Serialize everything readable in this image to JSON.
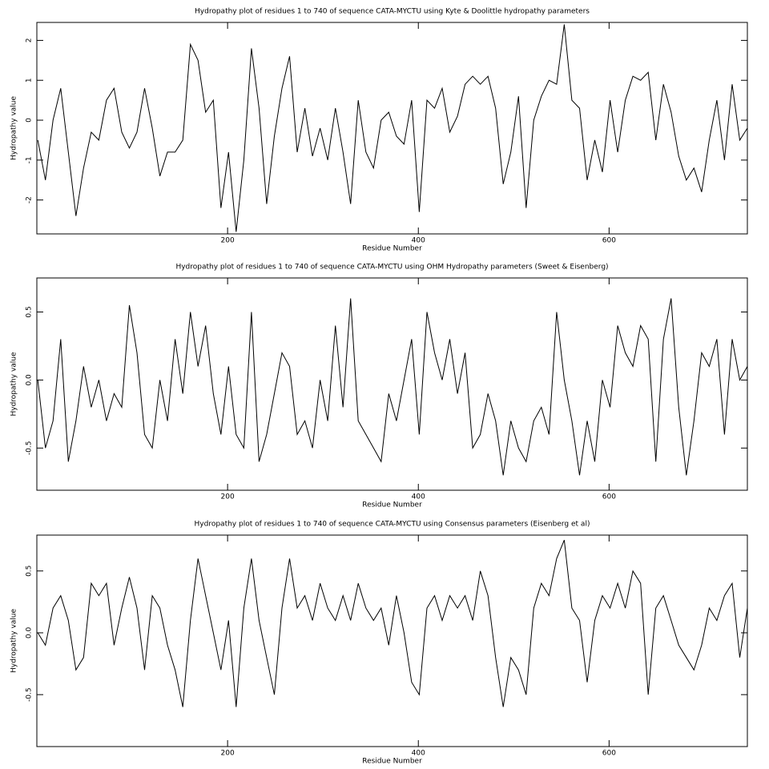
{
  "chart_data": [
    {
      "type": "line",
      "title": "Hydropathy plot of residues 1 to 740 of sequence CATA-MYCTU using Kyte & Doolittle hydropathy parameters",
      "xlabel": "Residue Number",
      "ylabel": "Hydropathy value",
      "color": "#000000",
      "xlim": [
        0,
        745
      ],
      "xticks": [
        200,
        400,
        600
      ],
      "ylim": [
        -2.85,
        2.45
      ],
      "yticks": [
        -2,
        -1,
        0,
        1,
        2
      ],
      "x": [
        1,
        9,
        17,
        25,
        33,
        41,
        49,
        57,
        65,
        73,
        81,
        89,
        97,
        105,
        113,
        121,
        129,
        137,
        145,
        153,
        161,
        169,
        177,
        185,
        193,
        201,
        209,
        217,
        225,
        233,
        241,
        249,
        257,
        265,
        273,
        281,
        289,
        297,
        305,
        313,
        321,
        329,
        337,
        345,
        353,
        361,
        369,
        377,
        385,
        393,
        401,
        409,
        417,
        425,
        433,
        441,
        449,
        457,
        465,
        473,
        481,
        489,
        497,
        505,
        513,
        521,
        529,
        537,
        545,
        553,
        561,
        569,
        577,
        585,
        593,
        601,
        609,
        617,
        625,
        633,
        641,
        649,
        657,
        665,
        673,
        681,
        689,
        697,
        705,
        713,
        721,
        729,
        737,
        745
      ],
      "values": [
        -0.5,
        -1.5,
        0,
        0.8,
        -0.8,
        -2.4,
        -1.2,
        -0.3,
        -0.5,
        0.5,
        0.8,
        -0.3,
        -0.7,
        -0.3,
        0.8,
        -0.2,
        -1.4,
        -0.8,
        -0.8,
        -0.5,
        1.9,
        1.5,
        0.2,
        0.5,
        -2.2,
        -0.8,
        -2.8,
        -1.0,
        1.8,
        0.3,
        -2.1,
        -0.4,
        0.8,
        1.6,
        -0.8,
        0.3,
        -0.9,
        -0.2,
        -1.0,
        0.3,
        -0.8,
        -2.1,
        0.5,
        -0.8,
        -1.2,
        0,
        0.2,
        -0.4,
        -0.6,
        0.5,
        -2.3,
        0.5,
        0.3,
        0.8,
        -0.3,
        0.1,
        0.9,
        1.1,
        0.9,
        1.1,
        0.3,
        -1.6,
        -0.8,
        0.6,
        -2.2,
        0,
        0.6,
        1.0,
        0.9,
        2.4,
        0.5,
        0.3,
        -1.5,
        -0.5,
        -1.3,
        0.5,
        -0.8,
        0.5,
        1.1,
        1.0,
        1.2,
        -0.5,
        0.9,
        0.2,
        -0.9,
        -1.5,
        -1.2,
        -1.8,
        -0.5,
        0.5,
        -1.0,
        0.9,
        -0.5,
        -0.2
      ]
    },
    {
      "type": "line",
      "title": "Hydropathy plot of residues 1 to 740 of sequence CATA-MYCTU using OHM  Hydropathy parameters (Sweet & Eisenberg)",
      "xlabel": "Residue Number",
      "ylabel": "Hydropathy value",
      "color": "#000000",
      "xlim": [
        0,
        745
      ],
      "xticks": [
        200,
        400,
        600
      ],
      "ylim": [
        -0.81,
        0.75
      ],
      "yticks": [
        -0.5,
        {
          "value": 0,
          "label": "0.0"
        },
        0.5
      ],
      "x": [
        1,
        9,
        17,
        25,
        33,
        41,
        49,
        57,
        65,
        73,
        81,
        89,
        97,
        105,
        113,
        121,
        129,
        137,
        145,
        153,
        161,
        169,
        177,
        185,
        193,
        201,
        209,
        217,
        225,
        233,
        241,
        249,
        257,
        265,
        273,
        281,
        289,
        297,
        305,
        313,
        321,
        329,
        337,
        345,
        353,
        361,
        369,
        377,
        385,
        393,
        401,
        409,
        417,
        425,
        433,
        441,
        449,
        457,
        465,
        473,
        481,
        489,
        497,
        505,
        513,
        521,
        529,
        537,
        545,
        553,
        561,
        569,
        577,
        585,
        593,
        601,
        609,
        617,
        625,
        633,
        641,
        649,
        657,
        665,
        673,
        681,
        689,
        697,
        705,
        713,
        721,
        729,
        737,
        745
      ],
      "values": [
        0,
        -0.5,
        -0.3,
        0.3,
        -0.6,
        -0.3,
        0.1,
        -0.2,
        0,
        -0.3,
        -0.1,
        -0.2,
        0.55,
        0.2,
        -0.4,
        -0.5,
        0,
        -0.3,
        0.3,
        -0.1,
        0.5,
        0.1,
        0.4,
        -0.1,
        -0.4,
        0.1,
        -0.4,
        -0.5,
        0.5,
        -0.6,
        -0.4,
        -0.1,
        0.2,
        0.1,
        -0.4,
        -0.3,
        -0.5,
        0,
        -0.3,
        0.4,
        -0.2,
        0.6,
        -0.3,
        -0.4,
        -0.5,
        -0.6,
        -0.1,
        -0.3,
        0,
        0.3,
        -0.4,
        0.5,
        0.2,
        0,
        0.3,
        -0.1,
        0.2,
        -0.5,
        -0.4,
        -0.1,
        -0.3,
        -0.7,
        -0.3,
        -0.5,
        -0.6,
        -0.3,
        -0.2,
        -0.4,
        0.5,
        0,
        -0.3,
        -0.7,
        -0.3,
        -0.6,
        0,
        -0.2,
        0.4,
        0.2,
        0.1,
        0.4,
        0.3,
        -0.6,
        0.3,
        0.6,
        -0.2,
        -0.7,
        -0.3,
        0.2,
        0.1,
        0.3,
        -0.4,
        0.3,
        0,
        0.1
      ]
    },
    {
      "type": "line",
      "title": "Hydropathy plot of residues 1 to 740 of sequence CATA-MYCTU using Consensus parameters (Eisenberg et al)",
      "xlabel": "Residue Number",
      "ylabel": "Hydropathy value",
      "color": "#000000",
      "xlim": [
        0,
        745
      ],
      "xticks": [
        200,
        400,
        600
      ],
      "ylim": [
        -0.92,
        0.79
      ],
      "yticks": [
        -0.5,
        {
          "value": 0,
          "label": "0.0"
        },
        0.5
      ],
      "x": [
        1,
        9,
        17,
        25,
        33,
        41,
        49,
        57,
        65,
        73,
        81,
        89,
        97,
        105,
        113,
        121,
        129,
        137,
        145,
        153,
        161,
        169,
        177,
        185,
        193,
        201,
        209,
        217,
        225,
        233,
        241,
        249,
        257,
        265,
        273,
        281,
        289,
        297,
        305,
        313,
        321,
        329,
        337,
        345,
        353,
        361,
        369,
        377,
        385,
        393,
        401,
        409,
        417,
        425,
        433,
        441,
        449,
        457,
        465,
        473,
        481,
        489,
        497,
        505,
        513,
        521,
        529,
        537,
        545,
        553,
        561,
        569,
        577,
        585,
        593,
        601,
        609,
        617,
        625,
        633,
        641,
        649,
        657,
        665,
        673,
        681,
        689,
        697,
        705,
        713,
        721,
        729,
        737,
        745
      ],
      "values": [
        0,
        -0.1,
        0.2,
        0.3,
        0.1,
        -0.3,
        -0.2,
        0.4,
        0.3,
        0.4,
        -0.1,
        0.2,
        0.45,
        0.2,
        -0.3,
        0.3,
        0.2,
        -0.1,
        -0.3,
        -0.6,
        0.1,
        0.6,
        0.3,
        0,
        -0.3,
        0.1,
        -0.6,
        0.2,
        0.6,
        0.1,
        -0.2,
        -0.5,
        0.2,
        0.6,
        0.2,
        0.3,
        0.1,
        0.4,
        0.2,
        0.1,
        0.3,
        0.1,
        0.4,
        0.2,
        0.1,
        0.2,
        -0.1,
        0.3,
        0,
        -0.4,
        -0.5,
        0.2,
        0.3,
        0.1,
        0.3,
        0.2,
        0.3,
        0.1,
        0.5,
        0.3,
        -0.2,
        -0.6,
        -0.2,
        -0.3,
        -0.5,
        0.2,
        0.4,
        0.3,
        0.6,
        0.75,
        0.2,
        0.1,
        -0.4,
        0.1,
        0.3,
        0.2,
        0.4,
        0.2,
        0.5,
        0.4,
        -0.5,
        0.2,
        0.3,
        0.1,
        -0.1,
        -0.2,
        -0.3,
        -0.1,
        0.2,
        0.1,
        0.3,
        0.4,
        -0.2,
        0.2
      ]
    }
  ]
}
